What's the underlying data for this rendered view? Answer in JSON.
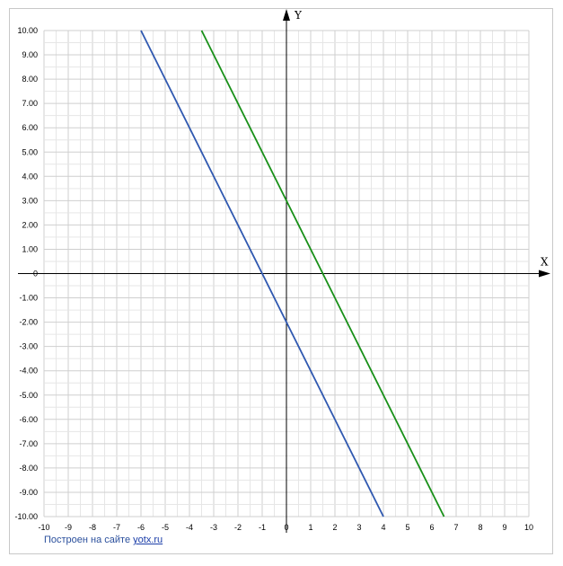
{
  "chart_data": {
    "type": "line",
    "xlabel": "X",
    "ylabel": "Y",
    "xlim": [
      -10,
      10
    ],
    "ylim": [
      -10,
      10
    ],
    "grid": true,
    "x_ticks": [
      "-10",
      "-9",
      "-8",
      "-7",
      "-6",
      "-5",
      "-4",
      "-3",
      "-2",
      "-1",
      "0",
      "1",
      "2",
      "3",
      "4",
      "5",
      "6",
      "7",
      "8",
      "9",
      "10"
    ],
    "y_ticks": [
      "10.00",
      "9.00",
      "8.00",
      "7.00",
      "6.00",
      "5.00",
      "4.00",
      "3.00",
      "2.00",
      "1.00",
      "0",
      "-1.00",
      "-2.00",
      "-3.00",
      "-4.00",
      "-5.00",
      "-6.00",
      "-7.00",
      "-8.00",
      "-9.00",
      "-10.00"
    ],
    "series": [
      {
        "color": "#2f58b0",
        "points": [
          [
            -6,
            10
          ],
          [
            4,
            -10
          ]
        ]
      },
      {
        "color": "#189018",
        "points": [
          [
            -3.5,
            10
          ],
          [
            6.5,
            -10
          ]
        ]
      }
    ]
  },
  "footer": {
    "credit_text": "Построен на сайте ",
    "credit_link": "yotx.ru"
  }
}
